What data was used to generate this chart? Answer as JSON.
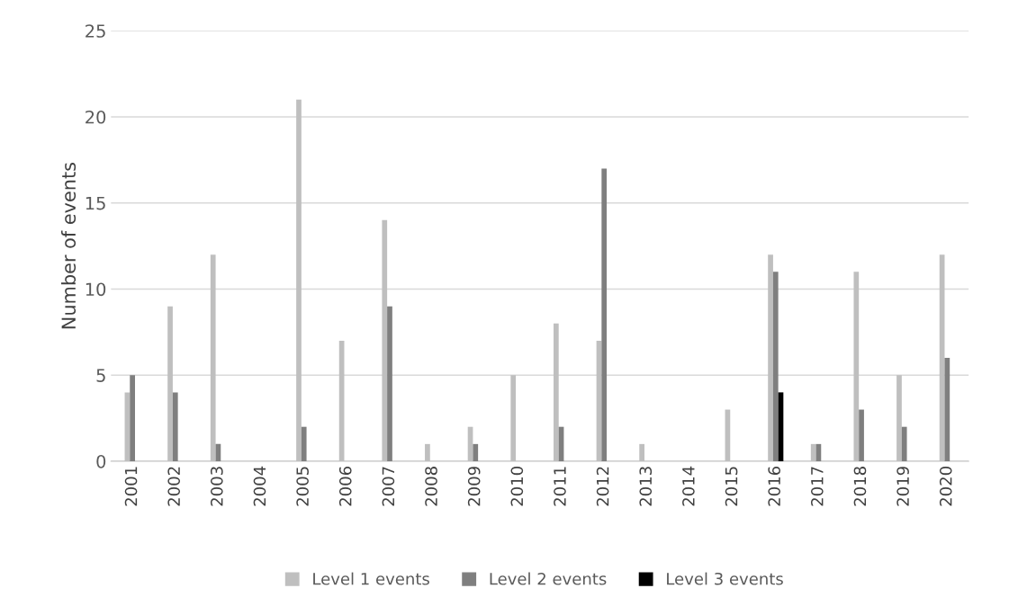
{
  "chart_data": {
    "type": "bar",
    "ylabel": "Number of events",
    "categories": [
      "2001",
      "2002",
      "2003",
      "2004",
      "2005",
      "2006",
      "2007",
      "2008",
      "2009",
      "2010",
      "2011",
      "2012",
      "2013",
      "2014",
      "2015",
      "2016",
      "2017",
      "2018",
      "2019",
      "2020"
    ],
    "series": [
      {
        "name": "Level 1 events",
        "color": "#bfbfbf",
        "values": [
          4,
          9,
          12,
          0,
          21,
          7,
          14,
          1,
          2,
          5,
          8,
          7,
          1,
          0,
          3,
          12,
          1,
          11,
          5,
          12
        ]
      },
      {
        "name": "Level 2 events",
        "color": "#7f7f7f",
        "values": [
          5,
          4,
          1,
          0,
          2,
          0,
          9,
          0,
          1,
          0,
          2,
          17,
          0,
          0,
          0,
          11,
          1,
          3,
          2,
          6
        ]
      },
      {
        "name": "Level 3 events",
        "color": "#000000",
        "values": [
          0,
          0,
          0,
          0,
          0,
          0,
          0,
          0,
          0,
          0,
          0,
          0,
          0,
          0,
          0,
          4,
          0,
          0,
          0,
          0
        ]
      }
    ],
    "ylim": [
      0,
      25
    ],
    "yticks": [
      0,
      5,
      10,
      15,
      20,
      25
    ],
    "grid": "y",
    "legend": "bottom"
  }
}
